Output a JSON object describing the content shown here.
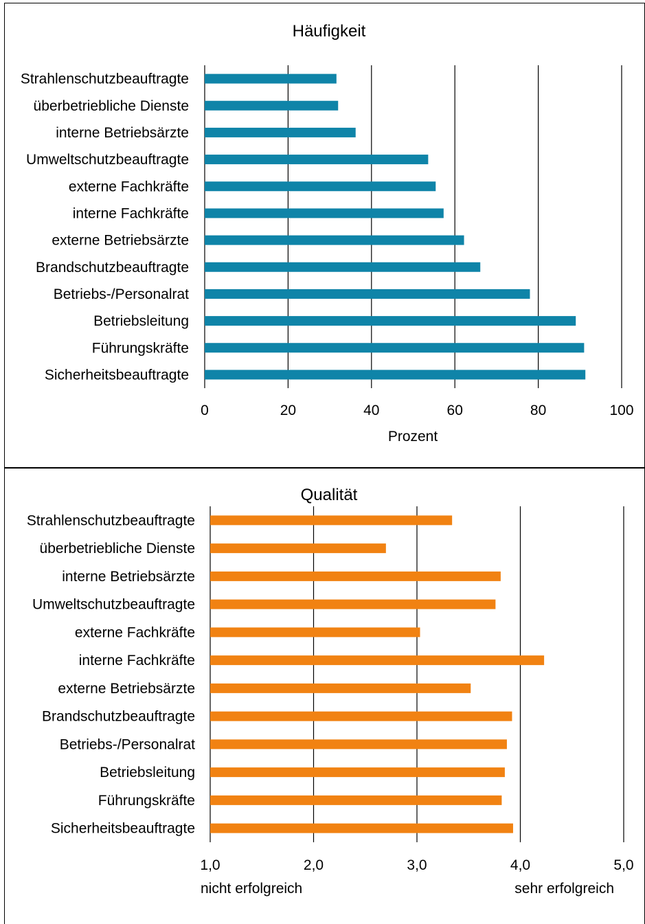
{
  "chart_data": [
    {
      "type": "bar",
      "orientation": "horizontal",
      "title": "Häufigkeit",
      "xlabel": "Prozent",
      "ylabel": "",
      "xlim": [
        0,
        100
      ],
      "ticks": [
        0,
        20,
        40,
        60,
        80,
        100
      ],
      "tick_labels": [
        "0",
        "20",
        "40",
        "60",
        "80",
        "100"
      ],
      "grid": "vertical",
      "color": "#0f84a8",
      "categories": [
        "Strahlenschutzbeauftragte",
        "überbetriebliche Dienste",
        "interne Betriebsärzte",
        "Umweltschutzbeauftragte",
        "externe Fachkräfte",
        "interne Fachkräfte",
        "externe Betriebsärzte",
        "Brandschutzbeauftragte",
        "Betriebs-/Personalrat",
        "Betriebsleitung",
        "Führungskräfte",
        "Sicherheitsbeauftragte"
      ],
      "values": [
        31.6,
        32.0,
        36.2,
        53.6,
        55.4,
        57.3,
        62.2,
        66.1,
        78.0,
        89.0,
        91.0,
        91.3
      ]
    },
    {
      "type": "bar",
      "orientation": "horizontal",
      "title": "Qualität",
      "xlabel": "",
      "ylabel": "",
      "xlim": [
        1.0,
        5.0
      ],
      "ticks": [
        1.0,
        2.0,
        3.0,
        4.0,
        5.0
      ],
      "tick_labels": [
        "1,0",
        "2,0",
        "3,0",
        "4,0",
        "5,0"
      ],
      "scale_low_label": "nicht erfolgreich",
      "scale_high_label": "sehr erfolgreich",
      "grid": "vertical",
      "color": "#f18212",
      "categories": [
        "Strahlenschutzbeauftragte",
        "überbetriebliche Dienste",
        "interne Betriebsärzte",
        "Umweltschutzbeauftragte",
        "externe Fachkräfte",
        "interne Fachkräfte",
        "externe Betriebsärzte",
        "Brandschutzbeauftragte",
        "Betriebs-/Personalrat",
        "Betriebsleitung",
        "Führungskräfte",
        "Sicherheitsbeauftragte"
      ],
      "values": [
        3.34,
        2.7,
        3.81,
        3.76,
        3.03,
        4.23,
        3.52,
        3.92,
        3.87,
        3.85,
        3.82,
        3.93
      ]
    }
  ]
}
